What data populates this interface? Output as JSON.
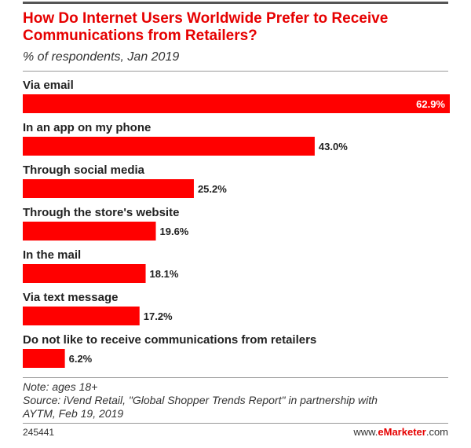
{
  "header": {
    "title": "How Do Internet Users Worldwide Prefer to Receive Communications from Retailers?",
    "subtitle": "% of respondents, Jan 2019"
  },
  "footer": {
    "note": "Note: ages 18+",
    "source_line1": "Source: iVend Retail, \"Global Shopper Trends Report\" in partnership with",
    "source_line2": "AYTM, Feb 19, 2019",
    "chart_id": "245441",
    "brand_prefix": "www.",
    "brand_name": "eMarketer",
    "brand_suffix": ".com"
  },
  "colors": {
    "bar": "#ff0000",
    "title": "#e60000"
  },
  "chart_data": {
    "type": "bar",
    "orientation": "horizontal",
    "categories": [
      "Via email",
      "In an app on my phone",
      "Through social media",
      "Through the store's website",
      "In the mail",
      "Via text message",
      "Do not like to receive communications from retailers"
    ],
    "values": [
      62.9,
      43.0,
      25.2,
      19.6,
      18.1,
      17.2,
      6.2
    ],
    "value_labels": [
      "62.9%",
      "43.0%",
      "25.2%",
      "19.6%",
      "18.1%",
      "17.2%",
      "6.2%"
    ],
    "title": "How Do Internet Users Worldwide Prefer to Receive Communications from Retailers?",
    "subtitle": "% of respondents, Jan 2019",
    "xlim": [
      0,
      62.9
    ],
    "grid": false,
    "legend": "none"
  }
}
